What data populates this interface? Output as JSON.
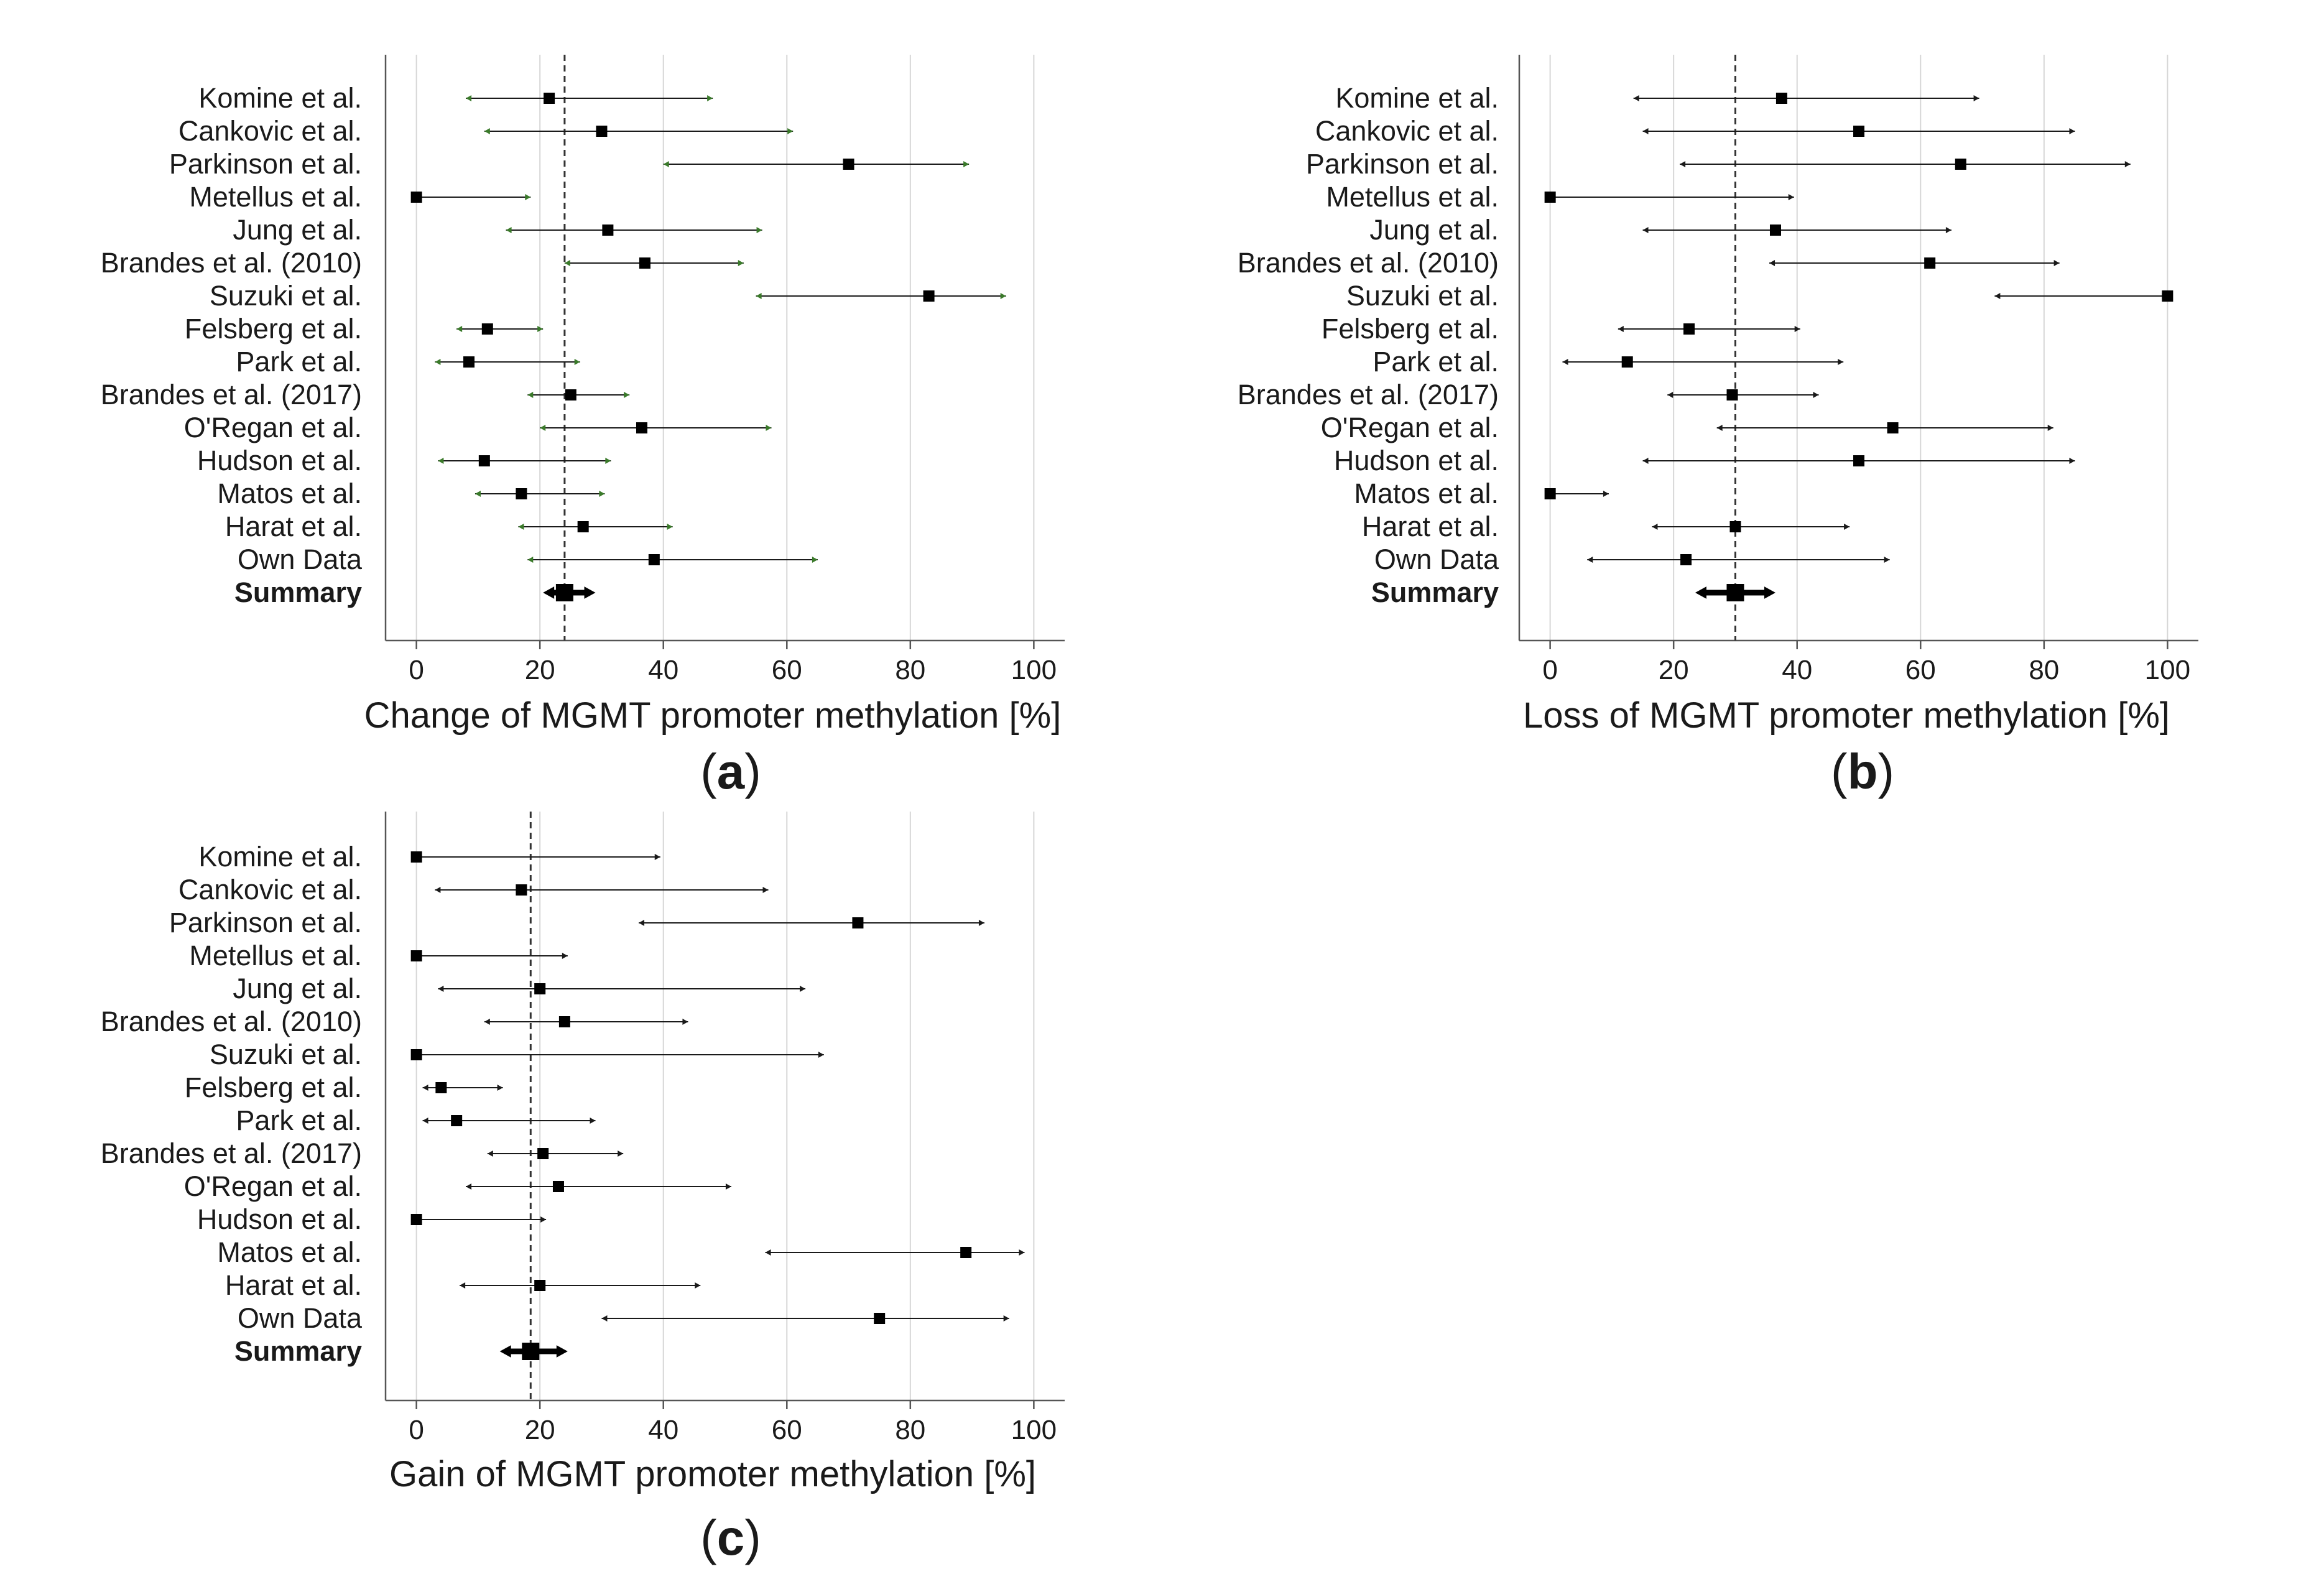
{
  "chart_data": [
    {
      "type": "forest",
      "id": "a",
      "panel_label": "a",
      "xlabel": "Change of MGMT promoter methylation [%]",
      "xlim": [
        -5,
        105
      ],
      "xticks": [
        0,
        20,
        40,
        60,
        80,
        100
      ],
      "summary_line": 24,
      "grid": true,
      "whisker_color": "#3a7a2a",
      "studies": [
        {
          "label": "Komine et al.",
          "value": 21.5,
          "lower": 8,
          "upper": 48
        },
        {
          "label": "Cankovic et al.",
          "value": 30,
          "lower": 11,
          "upper": 61
        },
        {
          "label": "Parkinson et al.",
          "value": 70,
          "lower": 40,
          "upper": 89.5
        },
        {
          "label": "Metellus et al.",
          "value": 0,
          "lower": 0,
          "upper": 18.5
        },
        {
          "label": "Jung et al.",
          "value": 31,
          "lower": 14.5,
          "upper": 56
        },
        {
          "label": "Brandes et al. (2010)",
          "value": 37,
          "lower": 24,
          "upper": 53
        },
        {
          "label": "Suzuki et al.",
          "value": 83,
          "lower": 55,
          "upper": 95.5
        },
        {
          "label": "Felsberg et al.",
          "value": 11.5,
          "lower": 6.5,
          "upper": 20.5
        },
        {
          "label": "Park et al.",
          "value": 8.5,
          "lower": 3,
          "upper": 26.5
        },
        {
          "label": "Brandes et al. (2017)",
          "value": 25,
          "lower": 18,
          "upper": 34.5
        },
        {
          "label": "O'Regan et al.",
          "value": 36.5,
          "lower": 20,
          "upper": 57.5
        },
        {
          "label": "Hudson et al.",
          "value": 11,
          "lower": 3.5,
          "upper": 31.5
        },
        {
          "label": "Matos et al.",
          "value": 17,
          "lower": 9.5,
          "upper": 30.5
        },
        {
          "label": "Harat et al.",
          "value": 27,
          "lower": 16.5,
          "upper": 41.5
        },
        {
          "label": "Own Data",
          "value": 38.5,
          "lower": 18,
          "upper": 65
        }
      ],
      "summary": {
        "label": "Summary",
        "value": 24,
        "lower": 20.5,
        "upper": 29
      }
    },
    {
      "type": "forest",
      "id": "b",
      "panel_label": "b",
      "xlabel": "Loss of MGMT promoter methylation [%]",
      "xlim": [
        -5,
        105
      ],
      "xticks": [
        0,
        20,
        40,
        60,
        80,
        100
      ],
      "summary_line": 30,
      "grid": true,
      "whisker_color": "#1a1a1a",
      "studies": [
        {
          "label": "Komine et al.",
          "value": 37.5,
          "lower": 13.5,
          "upper": 69.5
        },
        {
          "label": "Cankovic et al.",
          "value": 50,
          "lower": 15,
          "upper": 85
        },
        {
          "label": "Parkinson et al.",
          "value": 66.5,
          "lower": 21,
          "upper": 94
        },
        {
          "label": "Metellus et al.",
          "value": 0,
          "lower": 0,
          "upper": 39.5
        },
        {
          "label": "Jung et al.",
          "value": 36.5,
          "lower": 15,
          "upper": 65
        },
        {
          "label": "Brandes et al. (2010)",
          "value": 61.5,
          "lower": 35.5,
          "upper": 82.5
        },
        {
          "label": "Suzuki et al.",
          "value": 100,
          "lower": 72,
          "upper": 100
        },
        {
          "label": "Felsberg et al.",
          "value": 22.5,
          "lower": 11,
          "upper": 40.5
        },
        {
          "label": "Park et al.",
          "value": 12.5,
          "lower": 2,
          "upper": 47.5
        },
        {
          "label": "Brandes et al. (2017)",
          "value": 29.5,
          "lower": 19,
          "upper": 43.5
        },
        {
          "label": "O'Regan et al.",
          "value": 55.5,
          "lower": 27,
          "upper": 81.5
        },
        {
          "label": "Hudson et al.",
          "value": 50,
          "lower": 15,
          "upper": 85
        },
        {
          "label": "Matos et al.",
          "value": 0,
          "lower": 0,
          "upper": 9.5
        },
        {
          "label": "Harat et al.",
          "value": 30,
          "lower": 16.5,
          "upper": 48.5
        },
        {
          "label": "Own Data",
          "value": 22,
          "lower": 6,
          "upper": 55
        }
      ],
      "summary": {
        "label": "Summary",
        "value": 30,
        "lower": 23.5,
        "upper": 36.5
      }
    },
    {
      "type": "forest",
      "id": "c",
      "panel_label": "c",
      "xlabel": "Gain of MGMT promoter methylation [%]",
      "xlim": [
        -5,
        105
      ],
      "xticks": [
        0,
        20,
        40,
        60,
        80,
        100
      ],
      "summary_line": 18.5,
      "grid": true,
      "whisker_color": "#1a1a1a",
      "studies": [
        {
          "label": "Komine et al.",
          "value": 0,
          "lower": 0,
          "upper": 39.5
        },
        {
          "label": "Cankovic et al.",
          "value": 17,
          "lower": 3,
          "upper": 57
        },
        {
          "label": "Parkinson et al.",
          "value": 71.5,
          "lower": 36,
          "upper": 92
        },
        {
          "label": "Metellus et al.",
          "value": 0,
          "lower": 0,
          "upper": 24.5
        },
        {
          "label": "Jung et al.",
          "value": 20,
          "lower": 3.5,
          "upper": 63
        },
        {
          "label": "Brandes et al. (2010)",
          "value": 24,
          "lower": 11,
          "upper": 44
        },
        {
          "label": "Suzuki et al.",
          "value": 0,
          "lower": 0,
          "upper": 66
        },
        {
          "label": "Felsberg et al.",
          "value": 4,
          "lower": 1,
          "upper": 14
        },
        {
          "label": "Park et al.",
          "value": 6.5,
          "lower": 1,
          "upper": 29
        },
        {
          "label": "Brandes et al. (2017)",
          "value": 20.5,
          "lower": 11.5,
          "upper": 33.5
        },
        {
          "label": "O'Regan et al.",
          "value": 23,
          "lower": 8,
          "upper": 51
        },
        {
          "label": "Hudson et al.",
          "value": 0,
          "lower": 0,
          "upper": 21
        },
        {
          "label": "Matos et al.",
          "value": 89,
          "lower": 56.5,
          "upper": 98.5
        },
        {
          "label": "Harat et al.",
          "value": 20,
          "lower": 7,
          "upper": 46
        },
        {
          "label": "Own Data",
          "value": 75,
          "lower": 30,
          "upper": 96
        }
      ],
      "summary": {
        "label": "Summary",
        "value": 18.5,
        "lower": 13.5,
        "upper": 24.5
      }
    }
  ]
}
